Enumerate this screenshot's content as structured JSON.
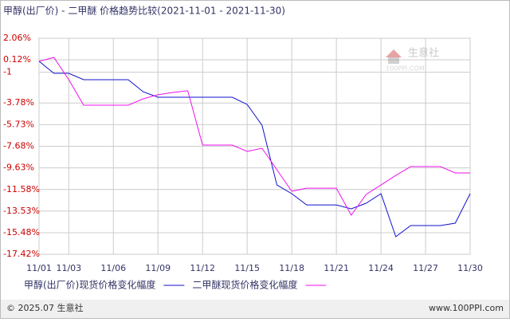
{
  "chart_data": {
    "type": "line",
    "title": "甲醇(出厂价) - 二甲醚 价格趋势比较(2021-11-01 - 2021-11-30)",
    "categories": [
      "11/01",
      null,
      "11/03",
      null,
      null,
      "11/06",
      null,
      null,
      "11/09",
      null,
      null,
      "11/12",
      null,
      null,
      "11/15",
      null,
      null,
      "11/18",
      null,
      null,
      "11/21",
      null,
      null,
      "11/24",
      null,
      null,
      "11/27",
      null,
      null,
      "11/30"
    ],
    "series": [
      {
        "name": "甲醇(出厂价)现货价格变化幅度",
        "color": "#1010cc",
        "values": [
          -0.02,
          -1.1,
          -1.1,
          -1.68,
          -1.68,
          -1.68,
          -1.68,
          -2.76,
          -3.26,
          -3.26,
          -3.26,
          -3.26,
          -3.26,
          -3.26,
          -3.91,
          -5.78,
          -11.17,
          -11.96,
          -12.97,
          -12.97,
          -12.97,
          -13.32,
          -12.82,
          -11.96,
          -15.84,
          -14.83,
          -14.83,
          -14.83,
          -14.62,
          -11.96
        ]
      },
      {
        "name": "二甲醚现货价格变化幅度",
        "color": "#ee11ee",
        "values": [
          -0.02,
          0.33,
          -1.68,
          -3.98,
          -3.98,
          -3.98,
          -3.98,
          -3.4,
          -3.04,
          -2.83,
          -2.68,
          -7.57,
          -7.57,
          -7.57,
          -8.15,
          -7.86,
          -9.8,
          -11.74,
          -11.46,
          -11.46,
          -11.46,
          -13.9,
          -12.03,
          -11.17,
          -10.31,
          -9.51,
          -9.51,
          -9.51,
          -10.09,
          -10.09
        ]
      }
    ],
    "ylim": [
      2.06,
      -17.42
    ],
    "yticks": [
      {
        "value": 2.06,
        "label": "2.06%"
      },
      {
        "value": 0.12,
        "label": "0.12%"
      },
      -1,
      {
        "value": -3.78,
        "label": "-3.78%"
      },
      {
        "value": -5.73,
        "label": "-5.73%"
      },
      {
        "value": -7.68,
        "label": "-7.68%"
      },
      {
        "value": -9.63,
        "label": "-9.63%"
      },
      {
        "value": -11.58,
        "label": "-11.58%"
      },
      {
        "value": -13.53,
        "label": "-13.53%"
      },
      {
        "value": -15.48,
        "label": "-15.48%"
      },
      {
        "value": -17.42,
        "label": "-17.42%"
      }
    ],
    "grid": true,
    "watermark": {
      "name": "生意社",
      "site": "100PPI.COM"
    },
    "footer": {
      "copyright": "© 2025.07 生意社",
      "site": "www.100PPI.com"
    }
  }
}
